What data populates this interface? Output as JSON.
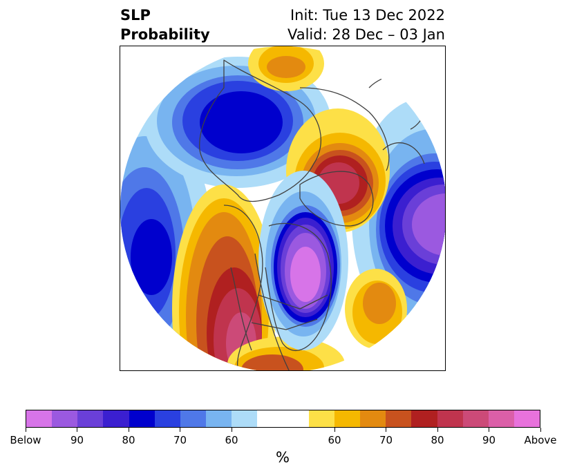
{
  "title": {
    "variable": "SLP",
    "product": "Probability",
    "init": "Init: Tue 13 Dec 2022",
    "valid": "Valid: 28 Dec – 03 Jan"
  },
  "colorbar": {
    "colors": [
      "#d774e8",
      "#9b59e0",
      "#6a3fd8",
      "#3b1fd0",
      "#0000cd",
      "#2a40e0",
      "#4f78e8",
      "#78b4f0",
      "#addcf8",
      "#ffffff",
      "#ffffff",
      "#fde047",
      "#f5b800",
      "#e38a10",
      "#c8521e",
      "#b02020",
      "#c0344e",
      "#cc4a78",
      "#db5fa8",
      "#e872dc"
    ],
    "ticks": [
      {
        "label": "Below",
        "index": 0
      },
      {
        "label": "90",
        "index": 2
      },
      {
        "label": "80",
        "index": 4
      },
      {
        "label": "70",
        "index": 6
      },
      {
        "label": "60",
        "index": 8
      },
      {
        "label": "60",
        "index": 12
      },
      {
        "label": "70",
        "index": 14
      },
      {
        "label": "80",
        "index": 16
      },
      {
        "label": "90",
        "index": 18
      },
      {
        "label": "Above",
        "index": 20
      }
    ],
    "unit": "%"
  }
}
